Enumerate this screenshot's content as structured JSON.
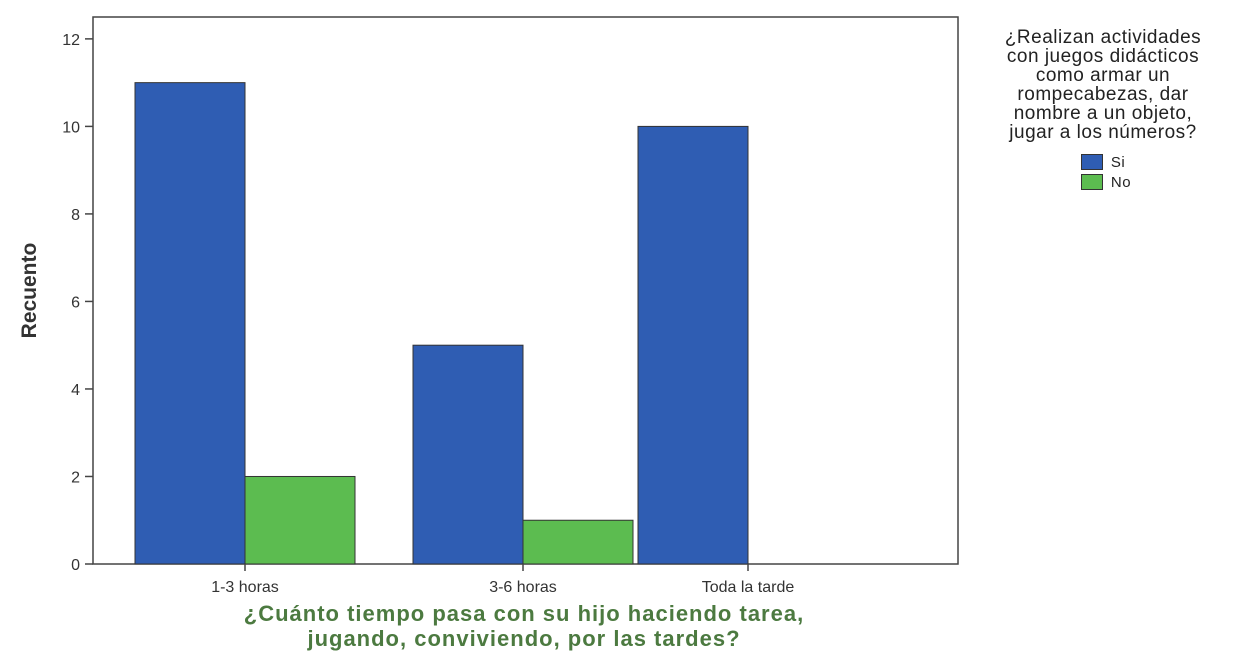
{
  "chart_data": {
    "type": "bar",
    "xlabel": "¿Cuánto tiempo pasa con su hijo haciendo tarea, jugando, conviviendo, por las tardes?",
    "xlabel_lines": [
      "¿Cuánto tiempo pasa con su hijo haciendo tarea,",
      "jugando, conviviendo, por las tardes?"
    ],
    "ylabel": "Recuento",
    "ylim": [
      0,
      12.5
    ],
    "yticks": [
      0,
      2,
      4,
      6,
      8,
      10,
      12
    ],
    "categories": [
      "1-3 horas",
      "3-6 horas",
      "Toda la tarde"
    ],
    "series": [
      {
        "name": "Si",
        "color": "#2f5db3",
        "values": [
          11,
          5,
          10
        ]
      },
      {
        "name": "No",
        "color": "#5cbc50",
        "values": [
          2,
          1,
          0
        ]
      }
    ],
    "legend": {
      "title_lines": [
        "¿Realizan actividades",
        "con juegos didácticos",
        "como armar un",
        "rompecabezas, dar",
        "nombre a un objeto,",
        "jugar a los números?"
      ],
      "placement": "right"
    },
    "grid": false,
    "axis_label_color": "#4c7a40"
  }
}
